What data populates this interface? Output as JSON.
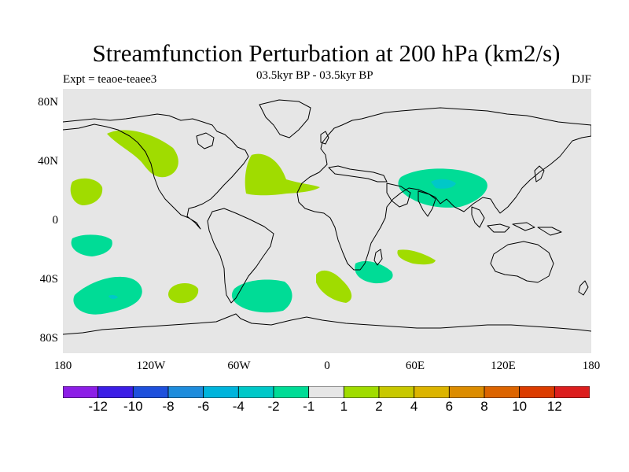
{
  "title": "Streamfunction Perturbation at 200 hPa (km2/s)",
  "experiment_label": "Expt = teaoe-teaee3",
  "period_label": "03.5kyr BP - 03.5kyr BP",
  "season_label": "DJF",
  "map": {
    "background_color": "#e6e6e6",
    "lat_ticks": [
      "80N",
      "40N",
      "0",
      "40S",
      "80S"
    ],
    "lon_ticks": [
      "180",
      "120W",
      "60W",
      "0",
      "60E",
      "120E",
      "180"
    ],
    "anomalies": [
      {
        "region": "Gulf of Alaska / NW North America",
        "sign": "positive",
        "level": "1 to 2",
        "color": "#a0dc00"
      },
      {
        "region": "Central North Atlantic",
        "sign": "positive",
        "level": "1 to 2",
        "color": "#a0dc00"
      },
      {
        "region": "Tibetan Plateau / South Asia",
        "sign": "negative",
        "level": "-2 to -1",
        "color": "#00dc96"
      },
      {
        "region": "Tibet core",
        "sign": "negative",
        "level": "-4 to -2",
        "color": "#00c8c8"
      },
      {
        "region": "Central North Pacific",
        "sign": "positive",
        "level": "1 to 2",
        "color": "#a0dc00"
      },
      {
        "region": "Subtropical South Pacific",
        "sign": "negative",
        "level": "-2 to -1",
        "color": "#00dc96"
      },
      {
        "region": "South Pacific mid-latitudes",
        "sign": "negative",
        "level": "-2 to -1",
        "color": "#00dc96"
      },
      {
        "region": "SE Pacific",
        "sign": "positive",
        "level": "1 to 2",
        "color": "#a0dc00"
      },
      {
        "region": "South Atlantic mid-latitudes",
        "sign": "negative",
        "level": "-2 to -1",
        "color": "#00dc96"
      },
      {
        "region": "South Atlantic / SW of Africa",
        "sign": "positive",
        "level": "1 to 2",
        "color": "#a0dc00"
      },
      {
        "region": "South of Africa",
        "sign": "negative",
        "level": "-2 to -1",
        "color": "#00dc96"
      },
      {
        "region": "SW Indian Ocean",
        "sign": "positive",
        "level": "1 to 2",
        "color": "#a0dc00"
      }
    ]
  },
  "colorbar": {
    "labels": [
      "-12",
      "-10",
      "-8",
      "-6",
      "-4",
      "-2",
      "-1",
      "1",
      "2",
      "4",
      "6",
      "8",
      "10",
      "12"
    ],
    "colors": [
      "#8c1ee6",
      "#3c1ee6",
      "#1e50dc",
      "#1e8cdc",
      "#00b4dc",
      "#00c8c8",
      "#00dc96",
      "#e6e6e6",
      "#a0dc00",
      "#c8c800",
      "#dcb400",
      "#dc8c00",
      "#dc6400",
      "#dc3c00",
      "#dc1e1e"
    ]
  }
}
